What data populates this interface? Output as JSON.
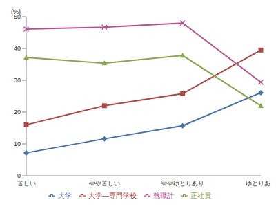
{
  "chart_data": {
    "type": "line",
    "y_label": "(%)",
    "categories": [
      "苦しい",
      "やや苦しい",
      "ややゆとりあり",
      "ゆとりあり"
    ],
    "series": [
      {
        "name": "大学",
        "color": "#4572a7",
        "marker": "diamond",
        "values": [
          7.2,
          11.6,
          15.7,
          26.1
        ]
      },
      {
        "name": "大学—専門学校",
        "color": "#aa4643",
        "marker": "square",
        "values": [
          16,
          22,
          25.8,
          39.5
        ]
      },
      {
        "name": "正社員",
        "color": "#89a54e",
        "marker": "triangle",
        "values": [
          37.2,
          35.4,
          37.8,
          22
        ]
      },
      {
        "name": "就職計",
        "color": "#b5508f",
        "marker": "x",
        "values": [
          46.1,
          46.7,
          48,
          29.4
        ]
      }
    ],
    "ylim": [
      0,
      50
    ],
    "yticks": [
      0,
      10,
      20,
      30,
      40,
      50
    ],
    "grid": false,
    "legend": "bottom"
  }
}
